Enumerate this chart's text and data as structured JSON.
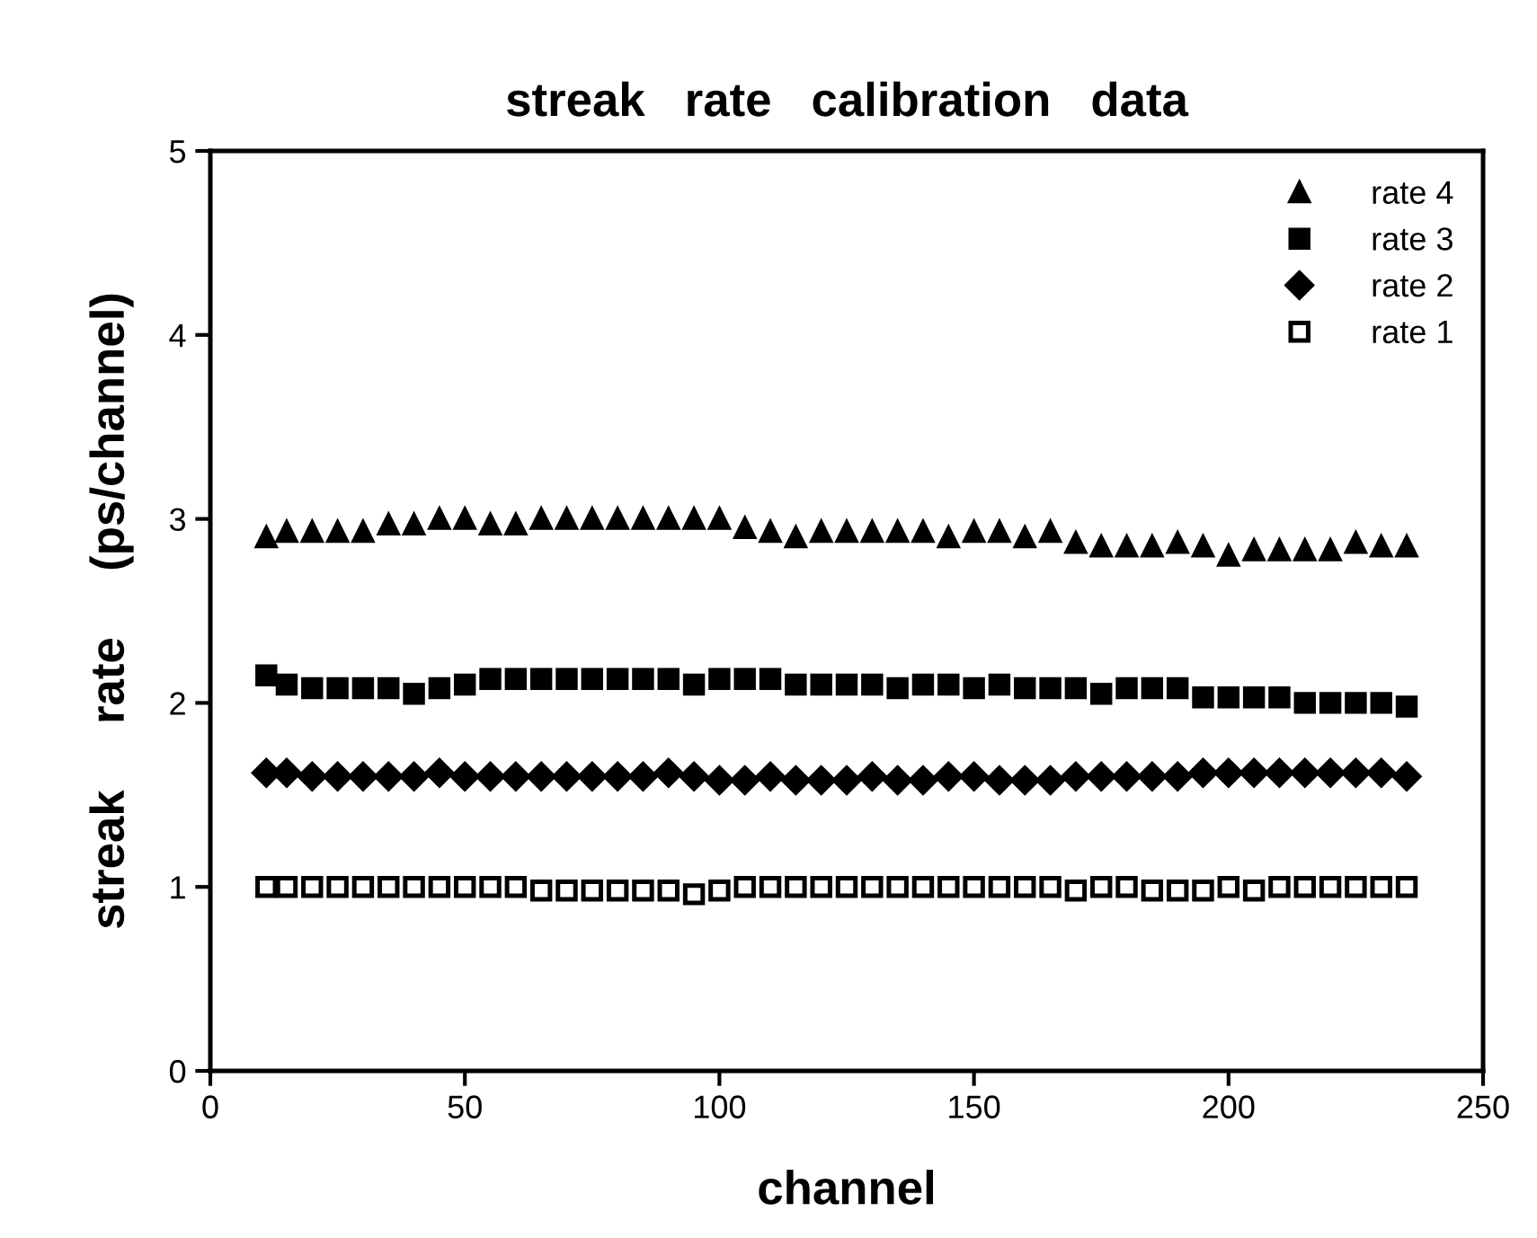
{
  "chart_data": {
    "type": "scatter",
    "title": "streak   rate   calibration   data",
    "xlabel": "channel",
    "ylabel": "streak     rate     (ps/channel)",
    "x": [
      11,
      15,
      20,
      25,
      30,
      35,
      40,
      45,
      50,
      55,
      60,
      65,
      70,
      75,
      80,
      85,
      90,
      95,
      100,
      105,
      110,
      115,
      120,
      125,
      130,
      135,
      140,
      145,
      150,
      155,
      160,
      165,
      170,
      175,
      180,
      185,
      190,
      195,
      200,
      205,
      210,
      215,
      220,
      225,
      230,
      235
    ],
    "series": [
      {
        "name": "rate 4",
        "color": "#000000",
        "marker": "triangle",
        "values": [
          2.9,
          2.93,
          2.93,
          2.93,
          2.93,
          2.97,
          2.97,
          3.0,
          3.0,
          2.97,
          2.97,
          3.0,
          3.0,
          3.0,
          3.0,
          3.0,
          3.0,
          3.0,
          3.0,
          2.95,
          2.93,
          2.9,
          2.93,
          2.93,
          2.93,
          2.93,
          2.93,
          2.9,
          2.93,
          2.93,
          2.9,
          2.93,
          2.87,
          2.85,
          2.85,
          2.85,
          2.87,
          2.85,
          2.8,
          2.83,
          2.83,
          2.83,
          2.83,
          2.87,
          2.85,
          2.85
        ]
      },
      {
        "name": "rate 3",
        "color": "#000000",
        "marker": "square",
        "values": [
          2.15,
          2.1,
          2.08,
          2.08,
          2.08,
          2.08,
          2.05,
          2.08,
          2.1,
          2.13,
          2.13,
          2.13,
          2.13,
          2.13,
          2.13,
          2.13,
          2.13,
          2.1,
          2.13,
          2.13,
          2.13,
          2.1,
          2.1,
          2.1,
          2.1,
          2.08,
          2.1,
          2.1,
          2.08,
          2.1,
          2.08,
          2.08,
          2.08,
          2.05,
          2.08,
          2.08,
          2.08,
          2.03,
          2.03,
          2.03,
          2.03,
          2.0,
          2.0,
          2.0,
          2.0,
          1.98
        ]
      },
      {
        "name": "rate 2",
        "color": "#000000",
        "marker": "diamond",
        "values": [
          1.62,
          1.62,
          1.6,
          1.6,
          1.6,
          1.6,
          1.6,
          1.62,
          1.6,
          1.6,
          1.6,
          1.6,
          1.6,
          1.6,
          1.6,
          1.6,
          1.62,
          1.6,
          1.58,
          1.58,
          1.6,
          1.58,
          1.58,
          1.58,
          1.6,
          1.58,
          1.58,
          1.6,
          1.6,
          1.58,
          1.58,
          1.58,
          1.6,
          1.6,
          1.6,
          1.6,
          1.6,
          1.62,
          1.62,
          1.62,
          1.62,
          1.62,
          1.62,
          1.62,
          1.62,
          1.6
        ]
      },
      {
        "name": "rate 1",
        "color": "#ffffff",
        "marker": "square",
        "values": [
          1.0,
          1.0,
          1.0,
          1.0,
          1.0,
          1.0,
          1.0,
          1.0,
          1.0,
          1.0,
          1.0,
          0.98,
          0.98,
          0.98,
          0.98,
          0.98,
          0.98,
          0.96,
          0.98,
          1.0,
          1.0,
          1.0,
          1.0,
          1.0,
          1.0,
          1.0,
          1.0,
          1.0,
          1.0,
          1.0,
          1.0,
          1.0,
          0.98,
          1.0,
          1.0,
          0.98,
          0.98,
          0.98,
          1.0,
          0.98,
          1.0,
          1.0,
          1.0,
          1.0,
          1.0,
          1.0
        ]
      }
    ],
    "xlim": [
      0,
      250
    ],
    "xticks": [
      0,
      50,
      100,
      150,
      200,
      250
    ],
    "ylim": [
      0,
      5
    ],
    "yticks": [
      0,
      1,
      2,
      3,
      4,
      5
    ],
    "grid": false,
    "legend": "top right"
  }
}
